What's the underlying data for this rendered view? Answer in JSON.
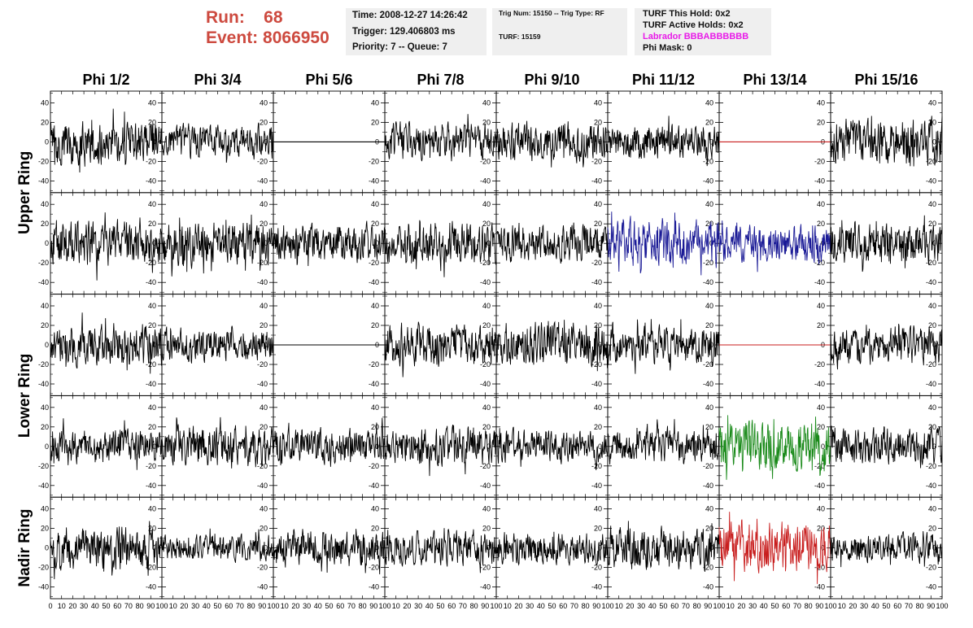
{
  "header": {
    "run_label": "Run:",
    "run_value": "68",
    "event_label": "Event:",
    "event_value": "8066950",
    "time": "Time: 2008-12-27 14:26:42",
    "trigger": "Trigger: 129.406803 ms",
    "priority": "Priority: 7 -- Queue: 7",
    "trig_num": "Trig Num: 15150 -- Trig Type: RF",
    "turf": "TURF: 15159",
    "turf_this_hold": "TURF This Hold: 0x2",
    "turf_active_holds": "TURF Active Holds: 0x2",
    "labrador": "Labrador BBBABBBBBB",
    "phi_mask": "Phi Mask: 0"
  },
  "colors": {
    "header_red": "#cd4a3f",
    "trace_default": "#000000",
    "trace_blue": "#1a1a96",
    "trace_green": "#1a8a1a",
    "trace_red": "#c81e1e",
    "labrador_magenta": "#e81be8",
    "info_box_bg": "#efefef"
  },
  "chart_data": {
    "type": "line",
    "columns": [
      "Phi 1/2",
      "Phi 3/4",
      "Phi 5/6",
      "Phi 7/8",
      "Phi 9/10",
      "Phi 11/12",
      "Phi 13/14",
      "Phi 15/16"
    ],
    "row_labels": [
      {
        "label": "Upper Ring",
        "rows": [
          0,
          1
        ]
      },
      {
        "label": "Lower Ring",
        "rows": [
          2,
          3
        ]
      },
      {
        "label": "Nadir Ring",
        "rows": [
          4
        ]
      }
    ],
    "ylim": [
      -52,
      52
    ],
    "y_ticks": [
      "-40",
      "-20",
      "0",
      "20",
      "40"
    ],
    "y_tick_values": [
      -40,
      -20,
      0,
      20,
      40
    ],
    "xlim": [
      0,
      100
    ],
    "x_tick_labels": [
      "0",
      "10",
      "20",
      "30",
      "40",
      "50",
      "60",
      "70",
      "80",
      "90",
      "100"
    ],
    "x_tick_values": [
      0,
      10,
      20,
      30,
      40,
      50,
      60,
      70,
      80,
      90,
      100
    ],
    "samples_per_trace": 260,
    "panels": [
      [
        {
          "color": "black",
          "amp": 22,
          "flat": false
        },
        {
          "color": "black",
          "amp": 17,
          "flat": false
        },
        {
          "color": "black",
          "amp": 0,
          "flat": true
        },
        {
          "color": "black",
          "amp": 18,
          "flat": false
        },
        {
          "color": "black",
          "amp": 19,
          "flat": false
        },
        {
          "color": "black",
          "amp": 17,
          "flat": false
        },
        {
          "color": "red",
          "amp": 0,
          "flat": true
        },
        {
          "color": "black",
          "amp": 24,
          "flat": false
        }
      ],
      [
        {
          "color": "black",
          "amp": 22,
          "flat": false
        },
        {
          "color": "black",
          "amp": 22,
          "flat": false
        },
        {
          "color": "black",
          "amp": 19,
          "flat": false
        },
        {
          "color": "black",
          "amp": 22,
          "flat": false
        },
        {
          "color": "black",
          "amp": 18,
          "flat": false
        },
        {
          "color": "blue",
          "amp": 24,
          "flat": false
        },
        {
          "color": "blue",
          "amp": 18,
          "flat": false
        },
        {
          "color": "black",
          "amp": 20,
          "flat": false
        }
      ],
      [
        {
          "color": "black",
          "amp": 20,
          "flat": false
        },
        {
          "color": "black",
          "amp": 16,
          "flat": false
        },
        {
          "color": "black",
          "amp": 0,
          "flat": true
        },
        {
          "color": "black",
          "amp": 21,
          "flat": false
        },
        {
          "color": "black",
          "amp": 22,
          "flat": false
        },
        {
          "color": "black",
          "amp": 19,
          "flat": false
        },
        {
          "color": "red",
          "amp": 0,
          "flat": true
        },
        {
          "color": "black",
          "amp": 19,
          "flat": false
        }
      ],
      [
        {
          "color": "black",
          "amp": 17,
          "flat": false
        },
        {
          "color": "black",
          "amp": 20,
          "flat": false
        },
        {
          "color": "black",
          "amp": 17,
          "flat": false
        },
        {
          "color": "black",
          "amp": 19,
          "flat": false
        },
        {
          "color": "black",
          "amp": 16,
          "flat": false
        },
        {
          "color": "black",
          "amp": 17,
          "flat": false
        },
        {
          "color": "green",
          "amp": 24,
          "flat": false
        },
        {
          "color": "black",
          "amp": 18,
          "flat": false
        }
      ],
      [
        {
          "color": "black",
          "amp": 21,
          "flat": false
        },
        {
          "color": "black",
          "amp": 13,
          "flat": false
        },
        {
          "color": "black",
          "amp": 18,
          "flat": false
        },
        {
          "color": "black",
          "amp": 16,
          "flat": false
        },
        {
          "color": "black",
          "amp": 16,
          "flat": false
        },
        {
          "color": "black",
          "amp": 21,
          "flat": false
        },
        {
          "color": "red",
          "amp": 26,
          "flat": false
        },
        {
          "color": "black",
          "amp": 14,
          "flat": false
        }
      ]
    ]
  }
}
